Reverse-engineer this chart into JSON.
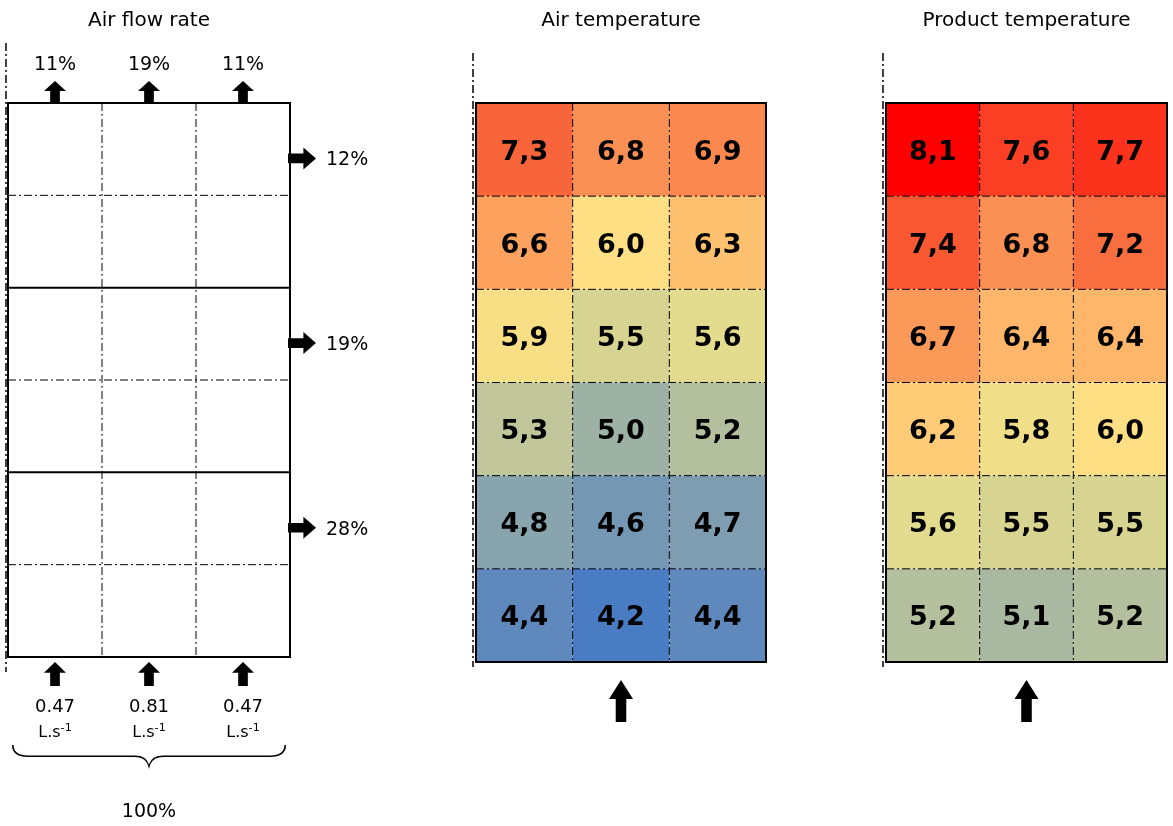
{
  "chart_data": [
    {
      "type": "other",
      "title": "Air flow rate",
      "annotations": [
        "11%",
        "19%",
        "11%",
        "12%",
        "19%",
        "28%",
        "0.47 L.s$^{-1}$",
        "0.81 L.s$^{-1}$",
        "0.47 L.s$^{-1}$",
        "100%"
      ]
    },
    {
      "type": "heatmap",
      "title": "Air temperature",
      "categories": [
        null,
        null,
        null
      ],
      "y_categories": [
        null,
        null,
        null,
        null,
        null,
        null
      ],
      "cells": [
        [
          7.3,
          6.8,
          6.9
        ],
        [
          6.6,
          6.0,
          6.3
        ],
        [
          5.9,
          5.5,
          5.6
        ],
        [
          5.3,
          5.0,
          5.2
        ],
        [
          4.8,
          4.6,
          4.7
        ],
        [
          4.4,
          4.2,
          4.4
        ]
      ],
      "cell_labels": [
        [
          "7,3",
          "6,8",
          "6,9"
        ],
        [
          "6,6",
          "6,0",
          "6,3"
        ],
        [
          "5,9",
          "5,5",
          "5,6"
        ],
        [
          "5,3",
          "5,0",
          "5,2"
        ],
        [
          "4,8",
          "4,6",
          "4,7"
        ],
        [
          "4,4",
          "4,2",
          "4,4"
        ]
      ]
    },
    {
      "type": "heatmap",
      "title": "Product temperature",
      "categories": [
        null,
        null,
        null
      ],
      "y_categories": [
        null,
        null,
        null,
        null,
        null,
        null
      ],
      "cells": [
        [
          8.1,
          7.6,
          7.7
        ],
        [
          7.4,
          6.8,
          7.2
        ],
        [
          6.7,
          6.4,
          6.4
        ],
        [
          6.2,
          5.8,
          6.0
        ],
        [
          5.6,
          5.5,
          5.5
        ],
        [
          5.2,
          5.1,
          5.2
        ]
      ],
      "cell_labels": [
        [
          "8,1",
          "7,6",
          "7,7"
        ],
        [
          "7,4",
          "6,8",
          "7,2"
        ],
        [
          "6,7",
          "6,4",
          "6,4"
        ],
        [
          "6,2",
          "5,8",
          "6,0"
        ],
        [
          "5,6",
          "5,5",
          "5,5"
        ],
        [
          "5,2",
          "5,1",
          "5,2"
        ]
      ]
    }
  ]
}
